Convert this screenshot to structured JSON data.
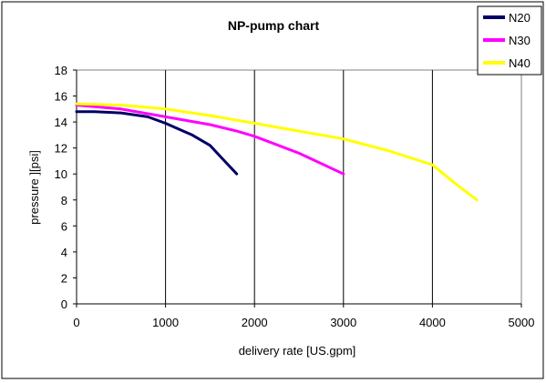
{
  "chart_data": {
    "type": "line",
    "title": "NP-pump chart",
    "xlabel": "delivery rate [US.gpm]",
    "ylabel": "pressure ][psi]",
    "xlim": [
      0,
      5000
    ],
    "ylim": [
      0,
      18
    ],
    "x_ticks": [
      0,
      1000,
      2000,
      3000,
      4000,
      5000
    ],
    "x_tick_labels": [
      "0",
      "1000",
      "2000",
      "3000",
      "4000",
      "5000"
    ],
    "y_ticks": [
      0,
      2,
      4,
      6,
      8,
      10,
      12,
      14,
      16,
      18
    ],
    "y_tick_labels": [
      "0",
      "2",
      "4",
      "6",
      "8",
      "10",
      "12",
      "14",
      "16",
      "18"
    ],
    "grid": "vertical lines at x ticks",
    "legend_position": "top-right",
    "series": [
      {
        "name": "N20",
        "color": "#000066",
        "points": [
          [
            0,
            14.8
          ],
          [
            200,
            14.8
          ],
          [
            500,
            14.7
          ],
          [
            800,
            14.4
          ],
          [
            1000,
            13.9
          ],
          [
            1200,
            13.3
          ],
          [
            1300,
            13.0
          ],
          [
            1500,
            12.2
          ],
          [
            1650,
            11.1
          ],
          [
            1800,
            10.0
          ]
        ]
      },
      {
        "name": "N30",
        "color": "#ff00ff",
        "points": [
          [
            0,
            15.3
          ],
          [
            500,
            15.0
          ],
          [
            1000,
            14.4
          ],
          [
            1500,
            13.8
          ],
          [
            1800,
            13.3
          ],
          [
            2000,
            12.9
          ],
          [
            2500,
            11.6
          ],
          [
            3000,
            10.0
          ]
        ]
      },
      {
        "name": "N40",
        "color": "#ffff00",
        "points": [
          [
            0,
            15.4
          ],
          [
            500,
            15.3
          ],
          [
            1000,
            15.0
          ],
          [
            1500,
            14.5
          ],
          [
            2000,
            13.9
          ],
          [
            2500,
            13.3
          ],
          [
            3000,
            12.7
          ],
          [
            3500,
            11.8
          ],
          [
            4000,
            10.7
          ],
          [
            4250,
            9.3
          ],
          [
            4500,
            8.0
          ]
        ]
      }
    ]
  }
}
